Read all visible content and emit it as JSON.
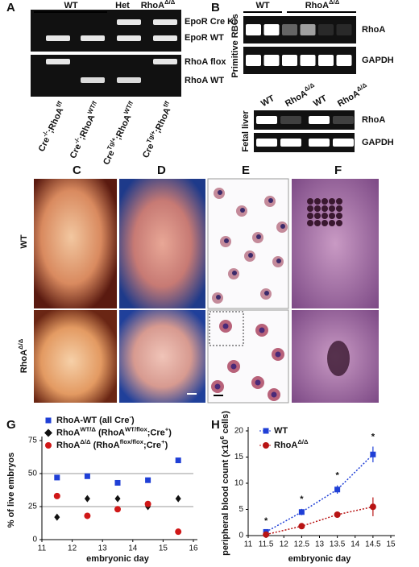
{
  "panel_letters": [
    "A",
    "B",
    "C",
    "D",
    "E",
    "F",
    "G",
    "H"
  ],
  "panel_a": {
    "groups": [
      "WT",
      "Het",
      [
        {
          "t": "RhoA"
        },
        {
          "t": "Δ/Δ",
          "sup": true
        }
      ]
    ],
    "bands": [
      "EpoR Cre KI",
      "EpoR WT",
      "RhoA flox",
      "RhoA WT"
    ],
    "lanes": [
      [
        {
          "t": "Cre"
        },
        {
          "t": "-/-",
          "sup": true
        },
        {
          "t": ";RhoA"
        },
        {
          "t": "f/f",
          "sup": true
        }
      ],
      [
        {
          "t": "Cre"
        },
        {
          "t": "-/-",
          "sup": true
        },
        {
          "t": ";RhoA"
        },
        {
          "t": "WT/f",
          "sup": true
        }
      ],
      [
        {
          "t": "Cre"
        },
        {
          "t": "Tg/+",
          "sup": true
        },
        {
          "t": ";RhoA"
        },
        {
          "t": "WT/f",
          "sup": true
        }
      ],
      [
        {
          "t": "Cre"
        },
        {
          "t": "Tg/+",
          "sup": true
        },
        {
          "t": ";RhoA"
        },
        {
          "t": "f/f",
          "sup": true
        }
      ]
    ]
  },
  "panel_b": {
    "primitive_label": "Primitive RBCs",
    "groups": [
      "WT",
      [
        {
          "t": "RhoA"
        },
        {
          "t": "Δ/Δ",
          "sup": true
        }
      ]
    ],
    "bands": [
      "RhoA",
      "GAPDH"
    ],
    "fetal_label": "Fetal liver",
    "fetal_lanes": [
      "WT",
      [
        {
          "t": "RhoA"
        },
        {
          "t": "Δ/Δ",
          "sup": true
        }
      ],
      "WT",
      [
        {
          "t": "RhoA"
        },
        {
          "t": "Δ/Δ",
          "sup": true
        }
      ]
    ],
    "fetal_bands": [
      "RhoA",
      "GAPDH"
    ]
  },
  "panels_cdef": {
    "rows": [
      "WT",
      [
        {
          "t": "RhoA"
        },
        {
          "t": "Δ/Δ",
          "sup": true
        }
      ]
    ]
  },
  "chart_data": [
    {
      "type": "scatter",
      "y_label": "% of live embryos",
      "x_label": "embryonic day",
      "xlim": [
        11,
        16
      ],
      "xticks": [
        11,
        12,
        13,
        14,
        15,
        16
      ],
      "ylim": [
        0,
        75
      ],
      "yticks": [
        0,
        25,
        50,
        75
      ],
      "grid": true,
      "series": [
        {
          "name": [
            {
              "t": "RhoA-WT (all Cre"
            },
            {
              "t": "-",
              "sup": true
            },
            {
              "t": ")"
            }
          ],
          "color": "#1f3fd6",
          "marker": "square",
          "x": [
            11.5,
            12.5,
            13.5,
            14.5,
            15.5
          ],
          "values": [
            47,
            48,
            43,
            45,
            60
          ]
        },
        {
          "name": [
            {
              "t": "RhoA"
            },
            {
              "t": "WT/Δ",
              "sup": true
            },
            {
              "t": " (RhoA"
            },
            {
              "t": "WT/flox",
              "sup": true
            },
            {
              "t": ";Cre"
            },
            {
              "t": "+",
              "sup": true
            },
            {
              "t": ")"
            }
          ],
          "color": "#111111",
          "marker": "diamond",
          "x": [
            11.5,
            12.5,
            13.5,
            14.5,
            15.5
          ],
          "values": [
            17,
            31,
            31,
            25,
            31
          ]
        },
        {
          "name": [
            {
              "t": "RhoA"
            },
            {
              "t": "Δ/Δ",
              "sup": true
            },
            {
              "t": " (RhoA"
            },
            {
              "t": "flox/flox",
              "sup": true
            },
            {
              "t": ";Cre"
            },
            {
              "t": "+",
              "sup": true
            },
            {
              "t": ")"
            }
          ],
          "color": "#d01818",
          "marker": "circle",
          "x": [
            11.5,
            12.5,
            13.5,
            14.5,
            15.5
          ],
          "values": [
            33,
            18,
            23,
            27,
            6
          ]
        }
      ]
    },
    {
      "type": "line",
      "y_label": [
        {
          "t": "peripheral blood count (x10"
        },
        {
          "t": "6",
          "sup": true
        },
        {
          "t": " cells)"
        }
      ],
      "x_label": "embryonic day",
      "xlim": [
        11,
        15
      ],
      "xticks": [
        11,
        11.5,
        12,
        12.5,
        13,
        13.5,
        14,
        14.5,
        15
      ],
      "ylim": [
        0,
        20
      ],
      "yticks": [
        0,
        5,
        10,
        15,
        20
      ],
      "annotations": [
        "*",
        "*",
        "*",
        "*"
      ],
      "series": [
        {
          "name": "WT",
          "color": "#1f3fd6",
          "marker": "square",
          "x": [
            11.5,
            12.5,
            13.5,
            14.5
          ],
          "values": [
            0.7,
            4.5,
            8.8,
            15.5
          ],
          "errors": [
            0.2,
            0.6,
            0.8,
            1.5
          ]
        },
        {
          "name": [
            {
              "t": "RhoA"
            },
            {
              "t": "Δ/Δ",
              "sup": true
            }
          ],
          "color": "#b81414",
          "marker": "circle",
          "x": [
            11.5,
            12.5,
            13.5,
            14.5
          ],
          "values": [
            0.2,
            1.8,
            4.0,
            5.5
          ],
          "errors": [
            0.1,
            0.3,
            0.3,
            1.8
          ]
        }
      ]
    }
  ]
}
